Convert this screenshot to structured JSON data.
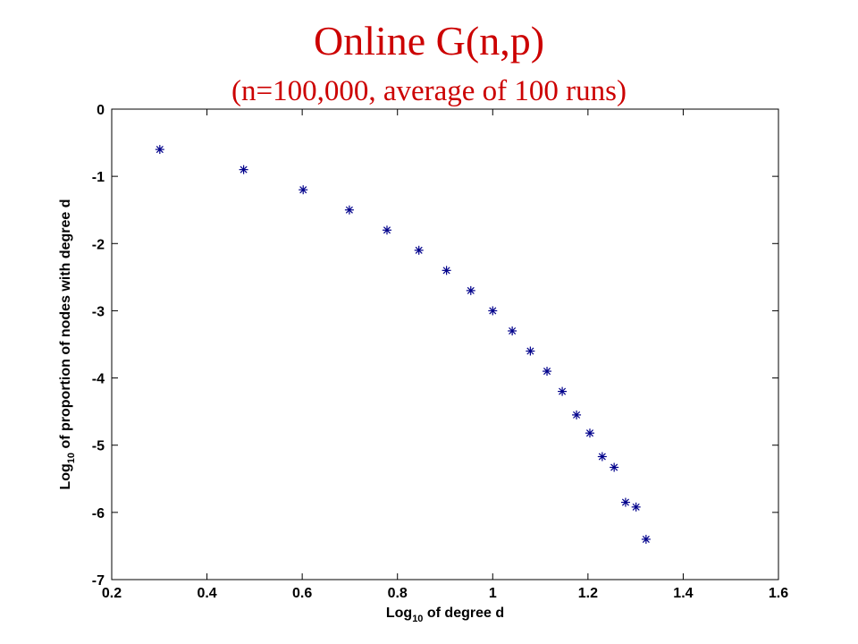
{
  "chart_data": {
    "type": "scatter",
    "title": "Online G(n,p)",
    "subtitle": "(n=100,000, average of 100 runs)",
    "xlabel_main": "Log",
    "xlabel_sub": "10",
    "xlabel_rest": " of degree d",
    "ylabel_main": "Log",
    "ylabel_sub": "10",
    "ylabel_rest": " of proportion of nodes with degree d",
    "xlim": [
      0.2,
      1.6
    ],
    "ylim": [
      -7,
      0
    ],
    "x_ticks": [
      0.2,
      0.4,
      0.6,
      0.8,
      1,
      1.2,
      1.4,
      1.6
    ],
    "x_tick_labels": [
      "0.2",
      "0.4",
      "0.6",
      "0.8",
      "1",
      "1.2",
      "1.4",
      "1.6"
    ],
    "y_ticks": [
      0,
      -1,
      -2,
      -3,
      -4,
      -5,
      -6,
      -7
    ],
    "y_tick_labels": [
      "0",
      "-1",
      "-2",
      "-3",
      "-4",
      "-5",
      "-6",
      "-7"
    ],
    "grid": false,
    "marker": "asterisk",
    "marker_color": "#00008b",
    "title_color": "#cc0000",
    "points": [
      {
        "x": 0.301,
        "y": -0.6
      },
      {
        "x": 0.477,
        "y": -0.9
      },
      {
        "x": 0.602,
        "y": -1.2
      },
      {
        "x": 0.699,
        "y": -1.5
      },
      {
        "x": 0.778,
        "y": -1.8
      },
      {
        "x": 0.845,
        "y": -2.1
      },
      {
        "x": 0.903,
        "y": -2.4
      },
      {
        "x": 0.954,
        "y": -2.7
      },
      {
        "x": 1.0,
        "y": -3.0
      },
      {
        "x": 1.041,
        "y": -3.3
      },
      {
        "x": 1.079,
        "y": -3.6
      },
      {
        "x": 1.114,
        "y": -3.9
      },
      {
        "x": 1.146,
        "y": -4.2
      },
      {
        "x": 1.176,
        "y": -4.55
      },
      {
        "x": 1.204,
        "y": -4.82
      },
      {
        "x": 1.23,
        "y": -5.17
      },
      {
        "x": 1.255,
        "y": -5.33
      },
      {
        "x": 1.279,
        "y": -5.85
      },
      {
        "x": 1.301,
        "y": -5.92
      },
      {
        "x": 1.322,
        "y": -6.4
      }
    ]
  }
}
